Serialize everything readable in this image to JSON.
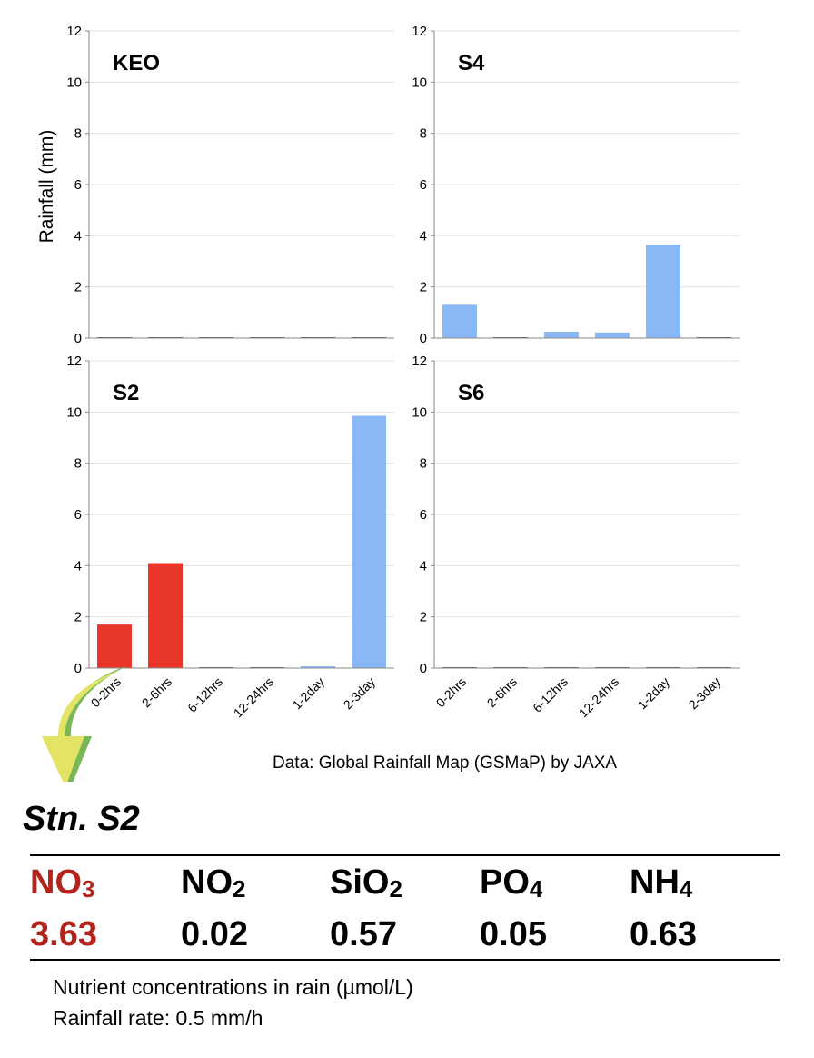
{
  "chart_data": [
    {
      "type": "bar",
      "title": "KEO",
      "ylabel": "Rainfall (mm)",
      "categories": [
        "0-2hrs",
        "2-6hrs",
        "6-12hrs",
        "12-24hrs",
        "1-2day",
        "2-3day"
      ],
      "values": [
        0,
        0,
        0,
        0,
        0,
        0
      ],
      "ylim": [
        0,
        12
      ],
      "yticks": [
        "0",
        "2",
        "4",
        "6",
        "8",
        "10",
        "12"
      ],
      "show_categories": false,
      "grid": true,
      "colors": [
        "#8ab7f5",
        "#8ab7f5",
        "#8ab7f5",
        "#8ab7f5",
        "#8ab7f5",
        "#8ab7f5"
      ]
    },
    {
      "type": "bar",
      "title": "S4",
      "categories": [
        "0-2hrs",
        "2-6hrs",
        "6-12hrs",
        "12-24hrs",
        "1-2day",
        "2-3day"
      ],
      "values": [
        1.3,
        0,
        0.25,
        0.22,
        3.65,
        0
      ],
      "ylim": [
        0,
        12
      ],
      "yticks": [
        "0",
        "2",
        "4",
        "6",
        "8",
        "10",
        "12"
      ],
      "show_categories": false,
      "grid": true,
      "colors": [
        "#8ab7f5",
        "#8ab7f5",
        "#8ab7f5",
        "#8ab7f5",
        "#8ab7f5",
        "#8ab7f5"
      ]
    },
    {
      "type": "bar",
      "title": "S2",
      "categories": [
        "0-2hrs",
        "2-6hrs",
        "6-12hrs",
        "12-24hrs",
        "1-2day",
        "2-3day"
      ],
      "values": [
        1.7,
        4.1,
        0,
        0,
        0.07,
        9.85
      ],
      "ylim": [
        0,
        12
      ],
      "yticks": [
        "0",
        "2",
        "4",
        "6",
        "8",
        "10",
        "12"
      ],
      "show_categories": true,
      "grid": true,
      "colors": [
        "#e8372a",
        "#e8372a",
        "#8ab7f5",
        "#8ab7f5",
        "#8ab7f5",
        "#8ab7f5"
      ]
    },
    {
      "type": "bar",
      "title": "S6",
      "categories": [
        "0-2hrs",
        "2-6hrs",
        "6-12hrs",
        "12-24hrs",
        "1-2day",
        "2-3day"
      ],
      "values": [
        0,
        0,
        0,
        0,
        0,
        0
      ],
      "ylim": [
        0,
        12
      ],
      "yticks": [
        "0",
        "2",
        "4",
        "6",
        "8",
        "10",
        "12"
      ],
      "show_categories": true,
      "grid": true,
      "colors": [
        "#8ab7f5",
        "#8ab7f5",
        "#8ab7f5",
        "#8ab7f5",
        "#8ab7f5",
        "#8ab7f5"
      ]
    }
  ],
  "source_note": "Data: Global Rainfall Map (GSMaP) by JAXA",
  "arrow": {
    "icon": "arrow-down-icon",
    "fill": "#e3e466",
    "edge": "#7ab857"
  },
  "station": "Stn. S2",
  "nutrients": [
    {
      "base": "NO",
      "sub": "3",
      "value": "3.63",
      "highlight": true
    },
    {
      "base": "NO",
      "sub": "2",
      "value": "0.02",
      "highlight": false
    },
    {
      "base": "SiO",
      "sub": "2",
      "value": "0.57",
      "highlight": false
    },
    {
      "base": "PO",
      "sub": "4",
      "value": "0.05",
      "highlight": false
    },
    {
      "base": "NH",
      "sub": "4",
      "value": "0.63",
      "highlight": false
    }
  ],
  "highlight_color": "#b5231d",
  "notes": [
    "Nutrient concentrations in rain (µmol/L)",
    "Rainfall rate: 0.5 mm/h"
  ]
}
